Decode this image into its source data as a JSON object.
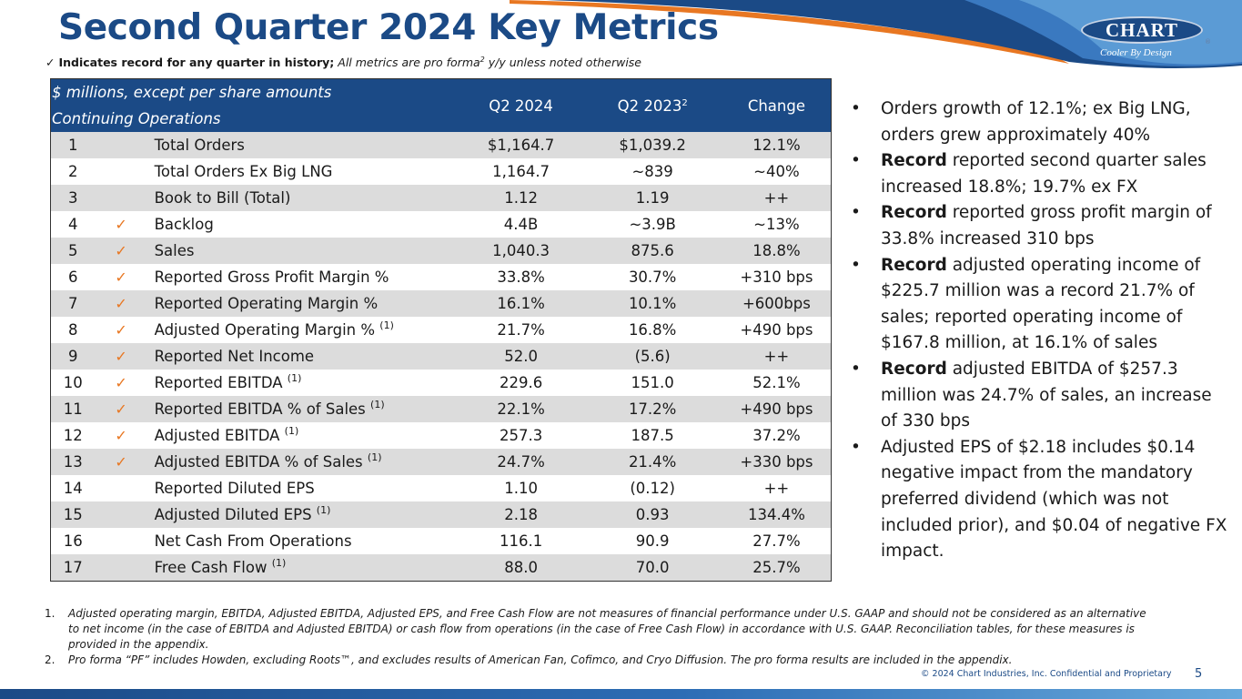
{
  "header": {
    "title": "Second Quarter 2024 Key Metrics",
    "subtitle_check": "✓",
    "subtitle_bold": "Indicates record for any quarter in history;",
    "subtitle_italic_a": "All metrics are pro forma",
    "subtitle_sup": "2",
    "subtitle_italic_b": "y/y unless noted otherwise"
  },
  "logo": {
    "name": "CHART",
    "tagline": "Cooler By Design",
    "reg_mark": "®"
  },
  "table": {
    "header_line1": "$ millions, except per share amounts",
    "header_line2": "Continuing Operations",
    "col_q2_2024": "Q2 2024",
    "col_q2_2023": "Q2 2023",
    "col_q2_2023_sup": "2",
    "col_change": "Change",
    "rows": [
      {
        "num": "1",
        "check": "",
        "metric": "Total Orders",
        "fn": "",
        "q2_2024": "$1,164.7",
        "q2_2023": "$1,039.2",
        "change": "12.1%"
      },
      {
        "num": "2",
        "check": "",
        "metric": "Total Orders Ex Big LNG",
        "fn": "",
        "q2_2024": "1,164.7",
        "q2_2023": "~839",
        "change": "~40%"
      },
      {
        "num": "3",
        "check": "",
        "metric": "Book to Bill (Total)",
        "fn": "",
        "q2_2024": "1.12",
        "q2_2023": "1.19",
        "change": "++"
      },
      {
        "num": "4",
        "check": "✓",
        "metric": "Backlog",
        "fn": "",
        "q2_2024": "4.4B",
        "q2_2023": "~3.9B",
        "change": "~13%"
      },
      {
        "num": "5",
        "check": "✓",
        "metric": "Sales",
        "fn": "",
        "q2_2024": "1,040.3",
        "q2_2023": "875.6",
        "change": "18.8%"
      },
      {
        "num": "6",
        "check": "✓",
        "metric": "Reported Gross Profit Margin %",
        "fn": "",
        "q2_2024": "33.8%",
        "q2_2023": "30.7%",
        "change": "+310 bps"
      },
      {
        "num": "7",
        "check": "✓",
        "metric": "Reported Operating Margin %",
        "fn": "",
        "q2_2024": "16.1%",
        "q2_2023": "10.1%",
        "change": "+600bps"
      },
      {
        "num": "8",
        "check": "✓",
        "metric": "Adjusted Operating Margin %",
        "fn": "(1)",
        "q2_2024": "21.7%",
        "q2_2023": "16.8%",
        "change": "+490 bps"
      },
      {
        "num": "9",
        "check": "✓",
        "metric": "Reported Net Income",
        "fn": "",
        "q2_2024": "52.0",
        "q2_2023": "(5.6)",
        "change": "++"
      },
      {
        "num": "10",
        "check": "✓",
        "metric": "Reported EBITDA",
        "fn": "(1)",
        "q2_2024": "229.6",
        "q2_2023": "151.0",
        "change": "52.1%"
      },
      {
        "num": "11",
        "check": "✓",
        "metric": "Reported EBITDA % of Sales",
        "fn": "(1)",
        "q2_2024": "22.1%",
        "q2_2023": "17.2%",
        "change": "+490 bps"
      },
      {
        "num": "12",
        "check": "✓",
        "metric": "Adjusted EBITDA",
        "fn": "(1)",
        "q2_2024": "257.3",
        "q2_2023": "187.5",
        "change": "37.2%"
      },
      {
        "num": "13",
        "check": "✓",
        "metric": "Adjusted EBITDA % of Sales",
        "fn": "(1)",
        "q2_2024": "24.7%",
        "q2_2023": "21.4%",
        "change": "+330 bps"
      },
      {
        "num": "14",
        "check": "",
        "metric": "Reported Diluted EPS",
        "fn": "",
        "q2_2024": "1.10",
        "q2_2023": "(0.12)",
        "change": "++"
      },
      {
        "num": "15",
        "check": "",
        "metric": "Adjusted Diluted EPS",
        "fn": "(1)",
        "q2_2024": "2.18",
        "q2_2023": "0.93",
        "change": "134.4%"
      },
      {
        "num": "16",
        "check": "",
        "metric": "Net Cash From Operations",
        "fn": "",
        "q2_2024": "116.1",
        "q2_2023": "90.9",
        "change": "27.7%"
      },
      {
        "num": "17",
        "check": "",
        "metric": "Free Cash Flow",
        "fn": "(1)",
        "q2_2024": "88.0",
        "q2_2023": "70.0",
        "change": "25.7%"
      }
    ]
  },
  "bullets": [
    {
      "bold": "",
      "text": "Orders growth of 12.1%; ex Big LNG, orders grew approximately 40%"
    },
    {
      "bold": "Record",
      "text": " reported second quarter sales increased 18.8%; 19.7% ex FX"
    },
    {
      "bold": "Record",
      "text": " reported gross profit margin of 33.8% increased 310 bps"
    },
    {
      "bold": "Record",
      "text": " adjusted operating income of $225.7 million was a record 21.7% of sales; reported operating income of $167.8 million, at 16.1% of sales"
    },
    {
      "bold": "Record",
      "text": " adjusted EBITDA of $257.3 million was 24.7% of sales, an increase of 330 bps"
    },
    {
      "bold": "",
      "text": "Adjusted EPS of $2.18 includes $0.14 negative impact from the mandatory preferred dividend (which was not included prior), and $0.04 of negative FX impact."
    }
  ],
  "bullet_char": "•",
  "footnotes": [
    {
      "num": "1.",
      "text": "Adjusted operating margin, EBITDA, Adjusted EBITDA, Adjusted EPS, and Free Cash Flow are not measures of financial performance under U.S. GAAP and should not be considered as an alternative to net income (in the case of EBITDA and Adjusted EBITDA) or cash flow from operations (in the case of Free Cash Flow) in accordance with U.S. GAAP. Reconciliation tables, for these measures is provided in the appendix."
    },
    {
      "num": "2.",
      "text": "Pro forma “PF” includes Howden, excluding Roots™, and excludes results of American Fan, Cofimco, and Cryo Diffusion. The pro forma results are included in the appendix."
    }
  ],
  "footer": {
    "copyright": "© 2024 Chart Industries, Inc. Confidential and Proprietary",
    "page_number": "5"
  },
  "colors": {
    "brand_blue": "#1b4a86",
    "accent_orange": "#e87722",
    "row_shade": "#dcdcdc"
  }
}
